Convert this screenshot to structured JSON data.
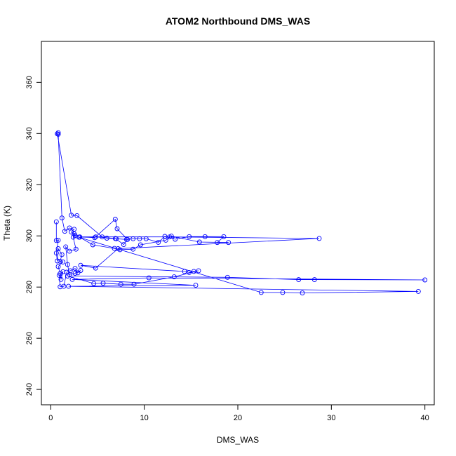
{
  "chart_data": {
    "type": "line",
    "title": "ATOM2 Northbound DMS_WAS",
    "xlabel": "DMS_WAS",
    "ylabel": "Theta (K)",
    "xlim": [
      -1,
      41
    ],
    "ylim": [
      234,
      376
    ],
    "xticks": [
      0,
      10,
      20,
      30,
      40
    ],
    "yticks": [
      240,
      260,
      280,
      300,
      320,
      340,
      360
    ],
    "grid": false,
    "legend": "none",
    "series": [
      {
        "name": "",
        "color": "#0000ff",
        "marker": "open-circle",
        "points": [
          [
            0.6,
            305.5
          ],
          [
            0.6,
            298.2
          ],
          [
            0.8,
            298.3
          ],
          [
            0.6,
            293.3
          ],
          [
            0.7,
            290.2
          ],
          [
            0.8,
            295.0
          ],
          [
            1.2,
            292.7
          ],
          [
            1.0,
            290.1
          ],
          [
            1.3,
            289.8
          ],
          [
            0.8,
            288.0
          ],
          [
            1.0,
            285.3
          ],
          [
            1.1,
            283.0
          ],
          [
            1.3,
            286.0
          ],
          [
            0.9,
            284.6
          ],
          [
            1.0,
            280.1
          ],
          [
            1.4,
            280.3
          ],
          [
            1.7,
            285.8
          ],
          [
            2.1,
            286.4
          ],
          [
            2.6,
            287.3
          ],
          [
            2.9,
            285.6
          ],
          [
            3.2,
            286.5
          ],
          [
            2.6,
            285.4
          ],
          [
            2.0,
            284.9
          ],
          [
            1.8,
            288.8
          ],
          [
            1.6,
            295.7
          ],
          [
            2.0,
            294.0
          ],
          [
            2.7,
            294.8
          ],
          [
            2.4,
            299.5
          ],
          [
            2.6,
            300.2
          ],
          [
            2.2,
            301.5
          ],
          [
            2.5,
            302.6
          ],
          [
            2.0,
            303.1
          ],
          [
            1.5,
            301.8
          ],
          [
            1.2,
            307.0
          ],
          [
            0.8,
            339.7
          ],
          [
            0.8,
            340.3
          ],
          [
            0.7,
            339.9
          ],
          [
            2.2,
            308.1
          ],
          [
            2.8,
            307.9
          ],
          [
            5.5,
            299.6
          ],
          [
            6.0,
            299.1
          ],
          [
            7.0,
            298.9
          ],
          [
            8.1,
            298.6
          ],
          [
            8.8,
            298.9
          ],
          [
            9.5,
            298.9
          ],
          [
            10.2,
            298.9
          ],
          [
            11.5,
            297.5
          ],
          [
            12.2,
            299.8
          ],
          [
            13.3,
            298.7
          ],
          [
            14.8,
            299.7
          ],
          [
            16.5,
            299.7
          ],
          [
            18.5,
            299.7
          ],
          [
            17.8,
            297.4
          ],
          [
            19.0,
            297.4
          ],
          [
            15.9,
            297.6
          ],
          [
            12.9,
            299.9
          ],
          [
            12.3,
            298.3
          ],
          [
            9.6,
            296.5
          ],
          [
            8.8,
            294.8
          ],
          [
            7.4,
            294.6
          ],
          [
            6.8,
            295.1
          ],
          [
            4.5,
            296.5
          ],
          [
            3.1,
            299.5
          ],
          [
            4.8,
            299.6
          ],
          [
            6.9,
            299.0
          ],
          [
            7.8,
            296.6
          ],
          [
            8.2,
            298.6
          ],
          [
            7.1,
            302.8
          ],
          [
            6.9,
            306.5
          ],
          [
            4.7,
            299.3
          ],
          [
            3.1,
            299.6
          ],
          [
            12.7,
            299.6
          ],
          [
            28.7,
            299.0
          ],
          [
            7.2,
            295.0
          ],
          [
            4.8,
            287.4
          ],
          [
            3.2,
            288.5
          ],
          [
            14.3,
            286.1
          ],
          [
            14.8,
            285.7
          ],
          [
            15.3,
            286.1
          ],
          [
            15.8,
            286.4
          ],
          [
            13.2,
            284.0
          ],
          [
            8.9,
            281.1
          ],
          [
            7.5,
            281.1
          ],
          [
            5.6,
            281.5
          ],
          [
            4.6,
            281.4
          ],
          [
            1.8,
            284.3
          ],
          [
            18.9,
            283.8
          ],
          [
            26.5,
            282.9
          ],
          [
            28.2,
            282.9
          ],
          [
            40.0,
            282.8
          ],
          [
            10.5,
            283.6
          ],
          [
            2.3,
            283.0
          ],
          [
            15.5,
            280.7
          ],
          [
            1.9,
            280.3
          ],
          [
            39.3,
            278.3
          ],
          [
            26.9,
            277.7
          ],
          [
            24.8,
            277.9
          ],
          [
            22.5,
            277.9
          ],
          [
            3.0,
            299.5
          ],
          [
            2.5,
            300.8
          ]
        ]
      }
    ]
  }
}
